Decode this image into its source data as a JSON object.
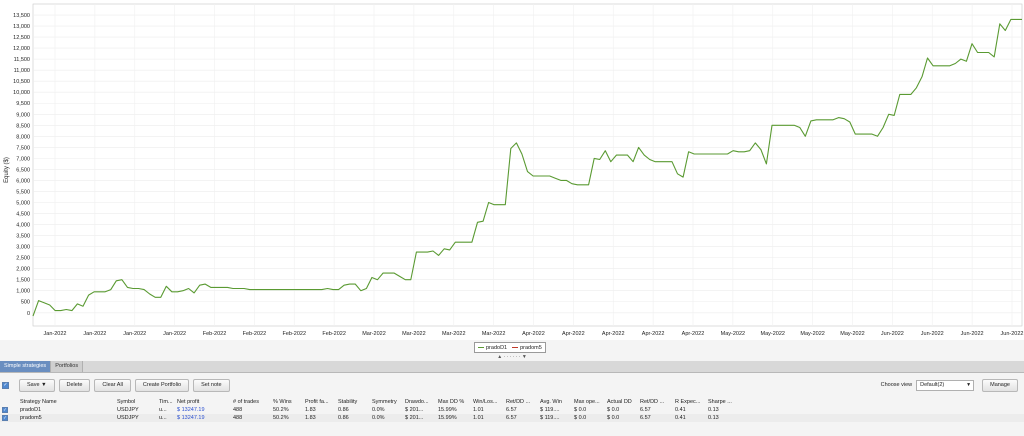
{
  "chart": {
    "ylabel": "Equity ($)",
    "legend": [
      {
        "name": "pradoD1",
        "color": "#5a9a32"
      },
      {
        "name": "pradom5",
        "color": "#c03a2a"
      }
    ]
  },
  "chart_data": {
    "type": "line",
    "title": "",
    "xlabel": "",
    "ylabel": "Equity ($)",
    "ylim": [
      -600,
      14000
    ],
    "yticks": [
      0,
      500,
      1000,
      1500,
      2000,
      2500,
      3000,
      3500,
      4000,
      4500,
      5000,
      5500,
      6000,
      6500,
      7000,
      7500,
      8000,
      8500,
      9000,
      9500,
      10000,
      10500,
      11000,
      11500,
      12000,
      12500,
      13000,
      13500
    ],
    "ytick_labels": [
      "0",
      "500",
      "1,000",
      "1,500",
      "2,000",
      "2,500",
      "3,000",
      "3,500",
      "4,000",
      "4,500",
      "5,000",
      "5,500",
      "6,000",
      "6,500",
      "7,000",
      "7,500",
      "8,000",
      "8,500",
      "9,000",
      "9,500",
      "10,000",
      "10,500",
      "11,000",
      "11,500",
      "12,000",
      "12,500",
      "13,000",
      "13,500"
    ],
    "xtick_labels": [
      "Jan-2022",
      "Jan-2022",
      "Jan-2022",
      "Jan-2022",
      "Feb-2022",
      "Feb-2022",
      "Feb-2022",
      "Feb-2022",
      "Mar-2022",
      "Mar-2022",
      "Mar-2022",
      "Mar-2022",
      "Apr-2022",
      "Apr-2022",
      "Apr-2022",
      "Apr-2022",
      "Apr-2022",
      "May-2022",
      "May-2022",
      "May-2022",
      "May-2022",
      "Jun-2022",
      "Jun-2022",
      "Jun-2022",
      "Jun-2022"
    ],
    "grid": true,
    "series": [
      {
        "name": "pradoD1",
        "color": "#5a9a32",
        "values": [
          -150,
          550,
          450,
          350,
          100,
          100,
          150,
          100,
          400,
          300,
          800,
          950,
          950,
          950,
          1050,
          1450,
          1500,
          1150,
          1100,
          1100,
          1050,
          850,
          700,
          700,
          1200,
          950,
          950,
          1000,
          1100,
          900,
          1250,
          1300,
          1150,
          1150,
          1150,
          1150,
          1100,
          1100,
          1100,
          1050,
          1050,
          1050,
          1050,
          1050,
          1050,
          1050,
          1050,
          1050,
          1050,
          1050,
          1050,
          1050,
          1050,
          1100,
          1050,
          1050,
          1250,
          1300,
          1300,
          1000,
          1100,
          1600,
          1500,
          1800,
          1800,
          1800,
          1650,
          1500,
          1500,
          2750,
          2750,
          2750,
          2800,
          2600,
          2900,
          2850,
          3200,
          3200,
          3200,
          3200,
          4100,
          4150,
          5000,
          4900,
          4900,
          4900,
          7450,
          7700,
          7200,
          6400,
          6200,
          6200,
          6200,
          6200,
          6100,
          6000,
          6000,
          5850,
          5800,
          5800,
          5800,
          7000,
          6950,
          7350,
          6850,
          7150,
          7150,
          7150,
          6850,
          7500,
          7150,
          6950,
          6850,
          6850,
          6850,
          6850,
          6300,
          6150,
          7300,
          7200,
          7200,
          7200,
          7200,
          7200,
          7200,
          7200,
          7350,
          7300,
          7300,
          7350,
          7700,
          7400,
          6750,
          8500,
          8500,
          8500,
          8500,
          8500,
          8400,
          8000,
          8700,
          8750,
          8750,
          8750,
          8750,
          8850,
          8800,
          8650,
          8100,
          8100,
          8100,
          8100,
          8000,
          8400,
          9000,
          8950,
          9900,
          9900,
          9900,
          10200,
          10700,
          11550,
          11200,
          11200,
          11200,
          11200,
          11300,
          11500,
          11400,
          12200,
          11800,
          11800,
          11800,
          11600,
          13100,
          12800,
          13300,
          13300,
          13300
        ]
      }
    ]
  },
  "tabs": [
    {
      "label": "Simple strategies",
      "active": true
    },
    {
      "label": "Portfolios",
      "active": false
    }
  ],
  "toolbar": {
    "save_label": "Save ▼",
    "delete_label": "Delete",
    "clear_all_label": "Clear All",
    "create_portfolio_label": "Create Portfolio",
    "set_note_label": "Set note",
    "choose_view_label": "Choose view",
    "view_value": "Default(2)",
    "manage_label": "Manage"
  },
  "table": {
    "columns": [
      {
        "label": "Strategy Name",
        "width": 97
      },
      {
        "label": "Symbol",
        "width": 42
      },
      {
        "label": "Tim...",
        "width": 18
      },
      {
        "label": "Net profit",
        "width": 56
      },
      {
        "label": "# of trades",
        "width": 40
      },
      {
        "label": "% Wins",
        "width": 32
      },
      {
        "label": "Profit fa...",
        "width": 33
      },
      {
        "label": "Stability",
        "width": 34
      },
      {
        "label": "Symmetry",
        "width": 33
      },
      {
        "label": "Drawdo...",
        "width": 33
      },
      {
        "label": "Max DD %",
        "width": 35
      },
      {
        "label": "Win/Los...",
        "width": 33
      },
      {
        "label": "Ret/DD ...",
        "width": 34
      },
      {
        "label": "Avg. Win",
        "width": 34
      },
      {
        "label": "Max ope...",
        "width": 33
      },
      {
        "label": "Actual DD",
        "width": 33
      },
      {
        "label": "Ret/DD ...",
        "width": 35
      },
      {
        "label": "R Expec...",
        "width": 33
      },
      {
        "label": "Sharpe ...",
        "width": 40
      }
    ],
    "rows": [
      [
        "pradoD1",
        "USDJPY",
        "u...",
        "$ 13247.19",
        "488",
        "50.2%",
        "1.83",
        "0.86",
        "0.0%",
        "$ 201...",
        "15.99%",
        "1.01",
        "6.57",
        "$ 119....",
        "$ 0.0",
        "$ 0.0",
        "6.57",
        "0.41",
        "0.13"
      ],
      [
        "pradom5",
        "USDJPY",
        "u...",
        "$ 13247.19",
        "488",
        "50.2%",
        "1.83",
        "0.86",
        "0.0%",
        "$ 201...",
        "15.99%",
        "1.01",
        "6.57",
        "$ 119....",
        "$ 0.0",
        "$ 0.0",
        "6.57",
        "0.41",
        "0.13"
      ]
    ]
  }
}
